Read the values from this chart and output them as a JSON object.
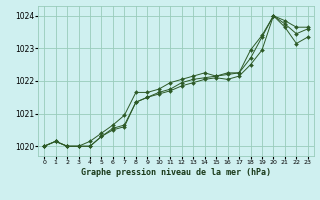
{
  "title": "Graphe pression niveau de la mer (hPa)",
  "background_color": "#cff0f0",
  "grid_color": "#99ccbb",
  "line_color": "#2d5a27",
  "marker_color": "#2d5a27",
  "xlim": [
    -0.5,
    23.5
  ],
  "ylim": [
    1019.7,
    1024.3
  ],
  "yticks": [
    1020,
    1021,
    1022,
    1023,
    1024
  ],
  "xticks": [
    0,
    1,
    2,
    3,
    4,
    5,
    6,
    7,
    8,
    9,
    10,
    11,
    12,
    13,
    14,
    15,
    16,
    17,
    18,
    19,
    20,
    21,
    22,
    23
  ],
  "x": [
    0,
    1,
    2,
    3,
    4,
    5,
    6,
    7,
    8,
    9,
    10,
    11,
    12,
    13,
    14,
    15,
    16,
    17,
    18,
    19,
    20,
    21,
    22,
    23
  ],
  "line1": [
    1020.0,
    1020.15,
    1020.0,
    1020.0,
    1020.0,
    1020.3,
    1020.55,
    1020.65,
    1021.35,
    1021.5,
    1021.65,
    1021.75,
    1021.95,
    1022.05,
    1022.1,
    1022.15,
    1022.2,
    1022.25,
    1022.7,
    1023.35,
    1024.0,
    1023.75,
    1023.45,
    1023.6
  ],
  "line2": [
    1020.0,
    1020.15,
    1020.0,
    1020.0,
    1020.15,
    1020.4,
    1020.65,
    1020.95,
    1021.65,
    1021.65,
    1021.75,
    1021.95,
    1022.05,
    1022.15,
    1022.25,
    1022.15,
    1022.25,
    1022.25,
    1022.95,
    1023.4,
    1024.0,
    1023.85,
    1023.65,
    1023.65
  ],
  "line3": [
    1020.0,
    1020.15,
    1020.0,
    1020.0,
    1020.0,
    1020.3,
    1020.5,
    1020.6,
    1021.35,
    1021.5,
    1021.6,
    1021.7,
    1021.85,
    1021.95,
    1022.05,
    1022.1,
    1022.05,
    1022.15,
    1022.5,
    1022.95,
    1024.0,
    1023.65,
    1023.15,
    1023.35
  ]
}
